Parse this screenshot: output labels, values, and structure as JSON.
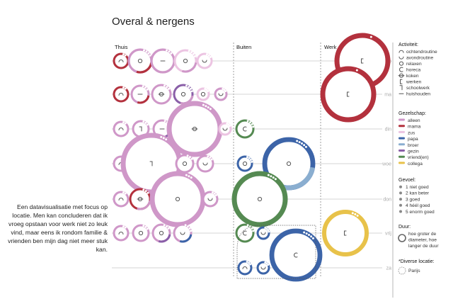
{
  "title": "Overal & nergens",
  "description": "Een datavisualisatie met focus op locatie. Men kan concluderen dat ik vroeg opstaan voor werk niet zo leuk vind, maar eens ik rondom familie & vrienden ben mijn dag niet meer stuk kan.",
  "colors": {
    "alleen": "#cf97c8",
    "mama": "#b3313d",
    "zus": "#ecc4e2",
    "papa": "#3c64a8",
    "broer": "#8aaed0",
    "gezin": "#8a5fa8",
    "vrienden": "#558a52",
    "collega": "#e8c24a"
  },
  "legend": {
    "activiteit": {
      "heading": "Activiteit:",
      "items": [
        {
          "icon": "ochtendroutine-icon",
          "label": "ochtendroutine"
        },
        {
          "icon": "avondroutine-icon",
          "label": "avondroutine"
        },
        {
          "icon": "relaxen-icon",
          "label": "relaxen"
        },
        {
          "icon": "horeca-icon",
          "label": "horeca"
        },
        {
          "icon": "koken-icon",
          "label": "koken"
        },
        {
          "icon": "werken-icon",
          "label": "werken"
        },
        {
          "icon": "schoolwerk-icon",
          "label": "schoolwerk"
        },
        {
          "icon": "huishouden-icon",
          "label": "huishouden"
        }
      ]
    },
    "gezelschap": {
      "heading": "Gezelschap:",
      "items": [
        {
          "key": "alleen",
          "label": "alleen"
        },
        {
          "key": "mama",
          "label": "mama"
        },
        {
          "key": "zus",
          "label": "zus"
        },
        {
          "key": "papa",
          "label": "papa"
        },
        {
          "key": "broer",
          "label": "broer"
        },
        {
          "key": "gezin",
          "label": "gezin"
        },
        {
          "key": "vrienden",
          "label": "vriend(en)"
        },
        {
          "key": "collega",
          "label": "collega"
        }
      ]
    },
    "gevoel": {
      "heading": "Gevoel:",
      "items": [
        "1 niet goed",
        "2 kan beter",
        "3 goed",
        "4 héél goed",
        "5 enorm goed"
      ]
    },
    "duur": {
      "heading": "Duur:",
      "text": [
        "hoe groter de",
        "diameter, hoe",
        "langer de duur"
      ]
    },
    "diverse": {
      "heading": "*Diverse locatie:",
      "item": "Parijs"
    }
  },
  "chart_data": {
    "type": "proportional-circles",
    "columns": [
      "Thuis",
      "Buiten",
      "Werk"
    ],
    "days": [
      "zo",
      "ma",
      "din",
      "woe",
      "don",
      "vrij",
      "za"
    ],
    "activity_icons": {
      "ochtendroutine": "ochtendroutine-icon",
      "avondroutine": "avondroutine-icon",
      "relaxen": "relaxen-icon",
      "horeca": "horeca-icon",
      "koken": "koken-icon",
      "werken": "werken-icon",
      "schoolwerk": "schoolwerk-icon",
      "huishouden": "huishouden-icon"
    },
    "entries": [
      {
        "day": "zo",
        "col": "Thuis",
        "slot": 0,
        "duur": 10,
        "activiteit": "ochtendroutine",
        "gezelschap": [
          "mama"
        ],
        "gevoel": 2
      },
      {
        "day": "zo",
        "col": "Thuis",
        "slot": 1,
        "duur": 16,
        "activiteit": "relaxen",
        "gezelschap": [
          "alleen",
          "mama"
        ],
        "gevoel": 4
      },
      {
        "day": "zo",
        "col": "Thuis",
        "slot": 2,
        "duur": 16,
        "activiteit": "huishouden",
        "gezelschap": [
          "alleen"
        ],
        "gevoel": 3
      },
      {
        "day": "zo",
        "col": "Thuis",
        "slot": 3,
        "duur": 15,
        "activiteit": "relaxen",
        "gezelschap": [
          "zus",
          "alleen"
        ],
        "gevoel": 4
      },
      {
        "day": "zo",
        "col": "Thuis",
        "slot": 4,
        "duur": 10,
        "activiteit": "avondroutine",
        "gezelschap": [
          "zus"
        ],
        "gevoel": 3
      },
      {
        "day": "zo",
        "col": "Werk",
        "slot": 0,
        "duur": 36,
        "activiteit": "werken",
        "gezelschap": [
          "mama"
        ],
        "gevoel": 1
      },
      {
        "day": "ma",
        "col": "Thuis",
        "slot": 0,
        "duur": 10,
        "activiteit": "ochtendroutine",
        "gezelschap": [
          "mama"
        ],
        "gevoel": 2
      },
      {
        "day": "ma",
        "col": "Thuis",
        "slot": 1,
        "duur": 12,
        "activiteit": "huishouden",
        "gezelschap": [
          "alleen",
          "mama"
        ],
        "gevoel": 3
      },
      {
        "day": "ma",
        "col": "Thuis",
        "slot": 2,
        "duur": 13,
        "activiteit": "koken",
        "gezelschap": [
          "alleen"
        ],
        "gevoel": 3
      },
      {
        "day": "ma",
        "col": "Thuis",
        "slot": 3,
        "duur": 13,
        "activiteit": "relaxen",
        "gezelschap": [
          "gezin",
          "alleen"
        ],
        "gevoel": 4
      },
      {
        "day": "ma",
        "col": "Thuis",
        "slot": 4,
        "duur": 8,
        "activiteit": "relaxen",
        "gezelschap": [
          "zus"
        ],
        "gevoel": 3
      },
      {
        "day": "ma",
        "col": "Thuis",
        "slot": 5,
        "duur": 8,
        "activiteit": "avondroutine",
        "gezelschap": [
          "alleen"
        ],
        "gevoel": 3
      },
      {
        "day": "ma",
        "col": "Werk",
        "slot": 0,
        "duur": 36,
        "activiteit": "werken",
        "gezelschap": [
          "mama"
        ],
        "gevoel": 1
      },
      {
        "day": "din",
        "col": "Thuis",
        "slot": 0,
        "duur": 10,
        "activiteit": "ochtendroutine",
        "gezelschap": [
          "alleen"
        ],
        "gevoel": 2
      },
      {
        "day": "din",
        "col": "Thuis",
        "slot": 1,
        "duur": 11,
        "activiteit": "schoolwerk",
        "gezelschap": [
          "alleen"
        ],
        "gevoel": 3
      },
      {
        "day": "din",
        "col": "Thuis",
        "slot": 2,
        "duur": 12,
        "activiteit": "huishouden",
        "gezelschap": [
          "alleen",
          "gezin"
        ],
        "gevoel": 4
      },
      {
        "day": "din",
        "col": "Thuis",
        "slot": 3,
        "duur": 36,
        "activiteit": "koken",
        "gezelschap": [
          "alleen"
        ],
        "gevoel": 4
      },
      {
        "day": "din",
        "col": "Thuis",
        "slot": 4,
        "duur": 8,
        "activiteit": "avondroutine",
        "gezelschap": [
          "zus"
        ],
        "gevoel": 3
      },
      {
        "day": "din",
        "col": "Buiten",
        "slot": 0,
        "duur": 12,
        "activiteit": "horeca",
        "gezelschap": [
          "vrienden"
        ],
        "gevoel": 4
      },
      {
        "day": "woe",
        "col": "Thuis",
        "slot": 0,
        "duur": 10,
        "activiteit": "ochtendroutine",
        "gezelschap": [
          "alleen"
        ],
        "gevoel": 2
      },
      {
        "day": "woe",
        "col": "Thuis",
        "slot": 1,
        "duur": 40,
        "activiteit": "schoolwerk",
        "gezelschap": [
          "alleen"
        ],
        "gevoel": 3
      },
      {
        "day": "woe",
        "col": "Thuis",
        "slot": 2,
        "duur": 12,
        "activiteit": "relaxen",
        "gezelschap": [
          "alleen"
        ],
        "gevoel": 3
      },
      {
        "day": "woe",
        "col": "Thuis",
        "slot": 3,
        "duur": 11,
        "activiteit": "avondroutine",
        "gezelschap": [
          "alleen"
        ],
        "gevoel": 3
      },
      {
        "day": "woe",
        "col": "Buiten",
        "slot": 0,
        "duur": 10,
        "activiteit": "relaxen",
        "gezelschap": [
          "papa"
        ],
        "gevoel": 4
      },
      {
        "day": "woe",
        "col": "Buiten",
        "slot": 1,
        "duur": 34,
        "activiteit": "relaxen",
        "gezelschap": [
          "papa",
          "broer"
        ],
        "gevoel": 5
      },
      {
        "day": "don",
        "col": "Thuis",
        "slot": 0,
        "duur": 10,
        "activiteit": "ochtendroutine",
        "gezelschap": [
          "alleen"
        ],
        "gevoel": 2
      },
      {
        "day": "don",
        "col": "Thuis",
        "slot": 1,
        "duur": 14,
        "activiteit": "koken",
        "gezelschap": [
          "mama",
          "alleen"
        ],
        "gevoel": 3
      },
      {
        "day": "don",
        "col": "Thuis",
        "slot": 2,
        "duur": 36,
        "activiteit": "relaxen",
        "gezelschap": [
          "alleen"
        ],
        "gevoel": 3
      },
      {
        "day": "don",
        "col": "Thuis",
        "slot": 3,
        "duur": 10,
        "activiteit": "avondroutine",
        "gezelschap": [
          "alleen"
        ],
        "gevoel": 3
      },
      {
        "day": "don",
        "col": "Buiten",
        "slot": 0,
        "duur": 36,
        "activiteit": "relaxen",
        "gezelschap": [
          "vrienden"
        ],
        "gevoel": 4
      },
      {
        "day": "vrij",
        "col": "Thuis",
        "slot": 0,
        "duur": 10,
        "activiteit": "ochtendroutine",
        "gezelschap": [
          "alleen"
        ],
        "gevoel": 2
      },
      {
        "day": "vrij",
        "col": "Thuis",
        "slot": 1,
        "duur": 11,
        "activiteit": "relaxen",
        "gezelschap": [
          "alleen"
        ],
        "gevoel": 3
      },
      {
        "day": "vrij",
        "col": "Thuis",
        "slot": 2,
        "duur": 12,
        "activiteit": "relaxen",
        "gezelschap": [
          "alleen",
          "gezin"
        ],
        "gevoel": 3
      },
      {
        "day": "vrij",
        "col": "Thuis",
        "slot": 3,
        "duur": 12,
        "activiteit": "avondroutine",
        "gezelschap": [
          "alleen",
          "papa"
        ],
        "gevoel": 4
      },
      {
        "day": "vrij",
        "col": "Buiten",
        "slot": 0,
        "duur": 12,
        "activiteit": "horeca",
        "gezelschap": [
          "vrienden"
        ],
        "gevoel": 4
      },
      {
        "day": "vrij",
        "col": "Buiten",
        "slot": 1,
        "duur": 8,
        "activiteit": "avondroutine",
        "gezelschap": [
          "papa"
        ],
        "gevoel": 4
      },
      {
        "day": "vrij",
        "col": "Werk",
        "slot": 0,
        "duur": 30,
        "activiteit": "werken",
        "gezelschap": [
          "collega"
        ],
        "gevoel": 3
      },
      {
        "day": "za",
        "col": "Buiten",
        "slot": 0,
        "duur": 9,
        "activiteit": "ochtendroutine",
        "gezelschap": [
          "papa"
        ],
        "gevoel": 3
      },
      {
        "day": "za",
        "col": "Buiten",
        "slot": 1,
        "duur": 8,
        "activiteit": "avondroutine",
        "gezelschap": [
          "papa"
        ],
        "gevoel": 3
      },
      {
        "day": "za",
        "col": "Buiten",
        "slot": 2,
        "duur": 34,
        "activiteit": "horeca",
        "gezelschap": [
          "papa"
        ],
        "gevoel": 5,
        "diverse_locatie": true
      }
    ]
  }
}
